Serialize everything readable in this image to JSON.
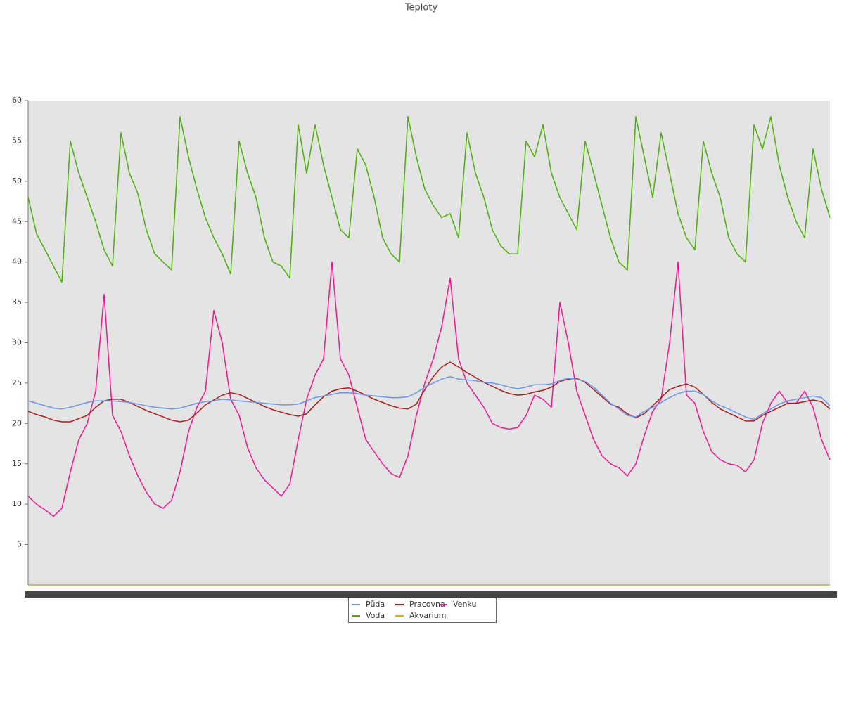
{
  "chart_data": {
    "type": "line",
    "title": "Teploty",
    "ylim": [
      0,
      60
    ],
    "yticks": [
      5,
      10,
      15,
      20,
      25,
      30,
      35,
      40,
      45,
      50,
      55,
      60
    ],
    "grid": false,
    "legend": "bottom",
    "series": [
      {
        "name": "Půda",
        "color": "#6a96e8",
        "values": [
          22.8,
          22.5,
          22.2,
          21.9,
          21.8,
          22,
          22.3,
          22.6,
          22.8,
          22.8,
          22.8,
          22.7,
          22.6,
          22.4,
          22.2,
          22,
          21.9,
          21.8,
          21.9,
          22.2,
          22.5,
          22.7,
          22.8,
          23,
          22.9,
          22.8,
          22.7,
          22.6,
          22.5,
          22.4,
          22.3,
          22.3,
          22.4,
          22.8,
          23.2,
          23.4,
          23.6,
          23.8,
          23.8,
          23.7,
          23.5,
          23.4,
          23.3,
          23.2,
          23.2,
          23.3,
          23.8,
          24.5,
          25,
          25.5,
          25.8,
          25.5,
          25.4,
          25.3,
          25.1,
          25,
          24.8,
          24.5,
          24.3,
          24.5,
          24.8,
          24.8,
          24.9,
          25.3,
          25.6,
          25.5,
          25.2,
          24.5,
          23.5,
          22.5,
          21.8,
          21,
          20.8,
          21.5,
          22,
          22.6,
          23.2,
          23.7,
          24,
          24,
          23.6,
          22.8,
          22.2,
          21.8,
          21.3,
          20.8,
          20.5,
          21.2,
          21.8,
          22.4,
          22.8,
          23,
          23.2,
          23.4,
          23.2,
          22.2
        ]
      },
      {
        "name": "Pracovna",
        "color": "#aa1c1c",
        "values": [
          21.5,
          21.1,
          20.8,
          20.4,
          20.2,
          20.2,
          20.6,
          21,
          22,
          22.8,
          23,
          23,
          22.6,
          22.1,
          21.6,
          21.2,
          20.8,
          20.4,
          20.2,
          20.4,
          21.3,
          22.3,
          22.9,
          23.5,
          23.8,
          23.6,
          23.1,
          22.6,
          22.1,
          21.7,
          21.4,
          21.1,
          20.9,
          21.2,
          22.3,
          23.3,
          24,
          24.3,
          24.4,
          24,
          23.5,
          23,
          22.6,
          22.2,
          21.9,
          21.8,
          22.4,
          24.2,
          25.8,
          27,
          27.6,
          27,
          26.3,
          25.7,
          25.1,
          24.6,
          24.1,
          23.7,
          23.5,
          23.6,
          23.9,
          24.1,
          24.5,
          25.2,
          25.5,
          25.6,
          25.1,
          24.2,
          23.3,
          22.4,
          22,
          21.2,
          20.7,
          21.2,
          22.2,
          23.2,
          24.2,
          24.6,
          24.9,
          24.5,
          23.6,
          22.6,
          21.8,
          21.3,
          20.8,
          20.3,
          20.3,
          21,
          21.5,
          22,
          22.5,
          22.5,
          22.7,
          22.9,
          22.7,
          21.8
        ]
      },
      {
        "name": "Venku",
        "color": "#f01890",
        "values": [
          11,
          10,
          9.3,
          8.5,
          9.5,
          14,
          18,
          20,
          24,
          36,
          21,
          19,
          16,
          13.5,
          11.5,
          10,
          9.5,
          10.5,
          14,
          19,
          22,
          24,
          34,
          30,
          23,
          21,
          17,
          14.5,
          13,
          12,
          11,
          12.5,
          18,
          23,
          26,
          28,
          40,
          28,
          26,
          22,
          18,
          16.5,
          15,
          13.8,
          13.3,
          16,
          21,
          25,
          28,
          32,
          38,
          28,
          25,
          23.5,
          22,
          20,
          19.5,
          19.3,
          19.5,
          21,
          23.5,
          23,
          22,
          35,
          30,
          24,
          21,
          18,
          16,
          15,
          14.5,
          13.5,
          15,
          18.5,
          21.5,
          23,
          30,
          40,
          23.5,
          22.5,
          19,
          16.5,
          15.5,
          15,
          14.8,
          14,
          15.5,
          20,
          22.5,
          24,
          22.5,
          22.5,
          24,
          22,
          18,
          15.5
        ]
      },
      {
        "name": "Voda",
        "color": "#4cae0a",
        "values": [
          48,
          43.5,
          41.5,
          39.5,
          37.5,
          55,
          51,
          48,
          45,
          41.5,
          39.5,
          56,
          51,
          48.5,
          44,
          41,
          40,
          39,
          58,
          53,
          49,
          45.5,
          43,
          41,
          38.5,
          55,
          51,
          48,
          43,
          40,
          39.5,
          38,
          57,
          51,
          57,
          52,
          48,
          44,
          43,
          54,
          52,
          48,
          43,
          41,
          40,
          58,
          53,
          49,
          47,
          45.5,
          46,
          43,
          56,
          51,
          48,
          44,
          42,
          41,
          41,
          55,
          53,
          57,
          51,
          48,
          46,
          44,
          55,
          51,
          47,
          43,
          40,
          39,
          58,
          53,
          48,
          56,
          51,
          46,
          43,
          41.5,
          55,
          51,
          48,
          43,
          41,
          40,
          57,
          54,
          58,
          52,
          48,
          45,
          43,
          54,
          49,
          45.5
        ]
      },
      {
        "name": "Akvarium",
        "color": "#e8a20a",
        "values": [
          0,
          0,
          0,
          0,
          0,
          0,
          0,
          0,
          0,
          0,
          0,
          0,
          0,
          0,
          0,
          0,
          0,
          0,
          0,
          0,
          0,
          0,
          0,
          0,
          0,
          0,
          0,
          0,
          0,
          0,
          0,
          0,
          0,
          0,
          0,
          0,
          0,
          0,
          0,
          0,
          0,
          0,
          0,
          0,
          0,
          0,
          0,
          0,
          0,
          0,
          0,
          0,
          0,
          0,
          0,
          0,
          0,
          0,
          0,
          0,
          0,
          0,
          0,
          0,
          0,
          0,
          0,
          0,
          0,
          0,
          0,
          0,
          0,
          0,
          0,
          0,
          0,
          0,
          0,
          0,
          0,
          0,
          0,
          0,
          0,
          0,
          0,
          0,
          0,
          0,
          0,
          0,
          0,
          0,
          0,
          0
        ]
      }
    ]
  }
}
